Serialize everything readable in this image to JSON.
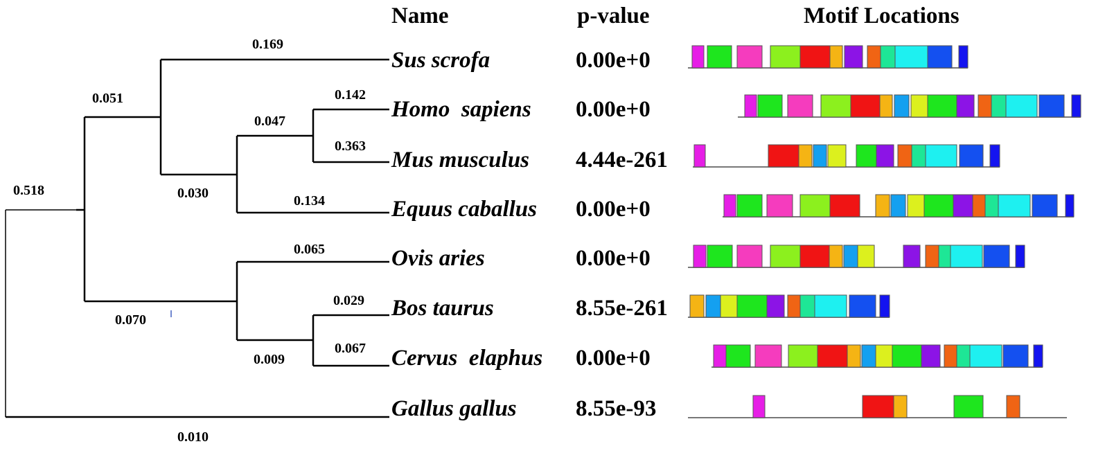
{
  "headers": {
    "name": "Name",
    "pvalue": "p-value",
    "motifs": "Motif Locations"
  },
  "species": [
    {
      "name": "Sus scrofa",
      "pvalue": "0.00e+0"
    },
    {
      "name": "Homo  sapiens",
      "pvalue": "0.00e+0"
    },
    {
      "name": "Mus musculus",
      "pvalue": "4.44e-261"
    },
    {
      "name": "Equus caballus",
      "pvalue": "0.00e+0"
    },
    {
      "name": "Ovis aries",
      "pvalue": "0.00e+0"
    },
    {
      "name": "Bos taurus",
      "pvalue": "8.55e-261"
    },
    {
      "name": "Cervus  elaphus",
      "pvalue": "0.00e+0"
    },
    {
      "name": "Gallus gallus",
      "pvalue": "8.55e-93"
    }
  ],
  "branch_lengths": {
    "sus": "0.169",
    "homo": "0.142",
    "mus": "0.363",
    "homo_mus_clade": "0.047",
    "equus": "0.134",
    "homo_mus_equus_clade": "0.030",
    "sus_clade": "0.051",
    "root_mammal": "0.518",
    "ovis": "0.065",
    "bos": "0.029",
    "cervus": "0.067",
    "bos_cervus_clade": "0.009",
    "ruminant_clade": "0.070",
    "gallus": "0.010"
  },
  "motif_colors": {
    "magenta": "#e61ee6",
    "green": "#1ee61e",
    "pink": "#f53cbe",
    "lime": "#8cf01e",
    "red": "#f01414",
    "orange": "#f5b414",
    "purple": "#8c14e6",
    "darkorange": "#f06414",
    "teal": "#1ee696",
    "cyan": "#1ef0f0",
    "blue": "#1450f0",
    "navy": "#1414f0",
    "skyblue": "#14a0f0",
    "yellow": "#dcf01e"
  },
  "motif_tracks": [
    [
      "magenta",
      "green",
      "pink",
      "lime",
      "red",
      "orange",
      "purple",
      "darkorange",
      "teal",
      "cyan",
      "blue",
      "navy"
    ],
    [
      "magenta",
      "green",
      "pink",
      "lime",
      "red",
      "orange",
      "skyblue",
      "yellow",
      "green",
      "purple",
      "darkorange",
      "teal",
      "cyan",
      "blue",
      "navy"
    ],
    [
      "magenta",
      "red",
      "orange",
      "skyblue",
      "yellow",
      "green",
      "purple",
      "darkorange",
      "teal",
      "cyan",
      "blue",
      "navy"
    ],
    [
      "magenta",
      "green",
      "pink",
      "lime",
      "red",
      "orange",
      "skyblue",
      "yellow",
      "green",
      "purple",
      "darkorange",
      "teal",
      "cyan",
      "blue",
      "navy"
    ],
    [
      "magenta",
      "green",
      "pink",
      "lime",
      "red",
      "orange",
      "skyblue",
      "yellow",
      "purple",
      "darkorange",
      "teal",
      "cyan",
      "blue",
      "navy"
    ],
    [
      "orange",
      "skyblue",
      "yellow",
      "green",
      "purple",
      "darkorange",
      "teal",
      "cyan",
      "blue",
      "navy"
    ],
    [
      "magenta",
      "green",
      "pink",
      "lime",
      "red",
      "orange",
      "skyblue",
      "yellow",
      "green",
      "purple",
      "darkorange",
      "teal",
      "cyan",
      "blue",
      "navy"
    ],
    [
      "magenta",
      "red",
      "orange",
      "green",
      "darkorange"
    ]
  ]
}
